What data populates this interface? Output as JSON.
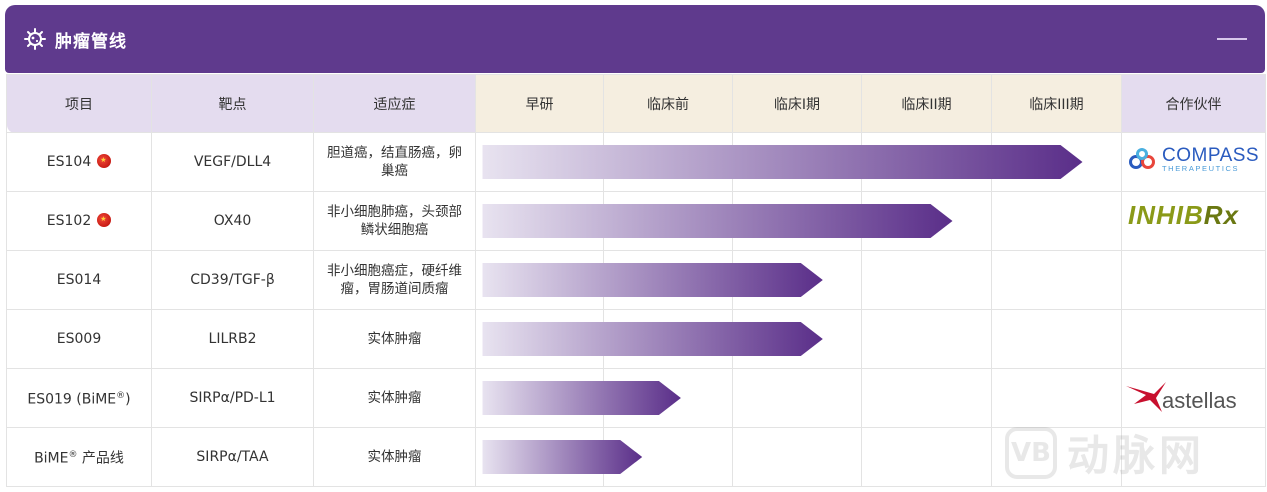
{
  "header": {
    "title": "肿瘤管线",
    "icon": "virus-icon",
    "collapse_icon": "minus-icon"
  },
  "columns": {
    "project": "项目",
    "target": "靶点",
    "indication": "适应症",
    "stages": [
      "早研",
      "临床前",
      "临床I期",
      "临床II期",
      "临床III期"
    ],
    "partner": "合作伙伴"
  },
  "rows": [
    {
      "project": "ES104",
      "china_flag": true,
      "target": "VEGF/DLL4",
      "indication": "胆道癌，结直肠癌，卵巢癌",
      "progress_stage": 5,
      "partner": "COMPASS"
    },
    {
      "project": "ES102",
      "china_flag": true,
      "target": "OX40",
      "indication": "非小细胞肺癌，头颈部鳞状细胞癌",
      "progress_stage": 4,
      "partner": "INHIBRx"
    },
    {
      "project": "ES014",
      "china_flag": false,
      "target": "CD39/TGF-β",
      "indication": "非小细胞癌症，硬纤维瘤，胃肠道间质瘤",
      "progress_stage": 3,
      "partner": ""
    },
    {
      "project": "ES009",
      "china_flag": false,
      "target": "LILRB2",
      "indication": "实体肿瘤",
      "progress_stage": 3,
      "partner": ""
    },
    {
      "project": "ES019 (BiME",
      "project_sup": "®",
      "project_suffix": ")",
      "china_flag": false,
      "target": "SIRPα/PD-L1",
      "indication": "实体肿瘤",
      "progress_stage": 1.6,
      "partner": "astellas"
    },
    {
      "project": "BiME",
      "project_sup": "®",
      "project_suffix": " 产品线",
      "china_flag": false,
      "target": "SIRPα/TAA",
      "indication": "实体肿瘤",
      "progress_stage": 1.3,
      "partner": ""
    }
  ],
  "partners": {
    "compass": {
      "name": "COMPASS",
      "sub": "THERAPEUTICS"
    },
    "inhibrx": {
      "name": "INHIB",
      "rx": "Rx"
    },
    "astellas": {
      "name": "astellas"
    }
  },
  "watermark": {
    "logo": "VB",
    "text": "动脉网"
  },
  "colors": {
    "header": "#5f3a8d",
    "bar_start": "#e6e0ef",
    "bar_end": "#5b2f8a",
    "main_header": "#e4dcef",
    "stage_header": "#f5eee0"
  }
}
